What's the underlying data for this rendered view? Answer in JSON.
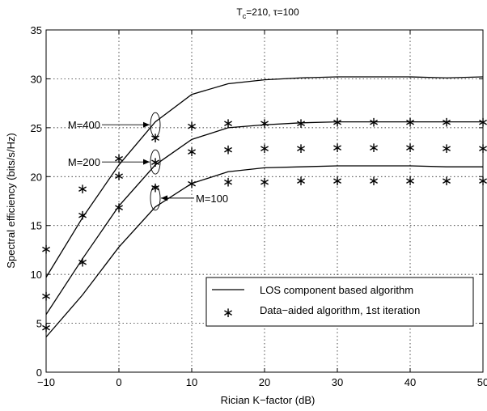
{
  "chart_data": {
    "type": "line",
    "title": "T",
    "title_sub": "c",
    "title_rest": "=210, τ=100",
    "xlabel": "Rician K−factor (dB)",
    "ylabel": "Spectral efficiency (bits/s/Hz)",
    "xlim": [
      -10,
      50
    ],
    "ylim": [
      0,
      35
    ],
    "xticks": [
      -10,
      0,
      10,
      20,
      30,
      40,
      50
    ],
    "xtick_labels": [
      "−10",
      "0",
      "10",
      "20",
      "30",
      "40",
      "50"
    ],
    "yticks": [
      0,
      5,
      10,
      15,
      20,
      25,
      30,
      35
    ],
    "ytick_labels": [
      "0",
      "5",
      "10",
      "15",
      "20",
      "25",
      "30",
      "35"
    ],
    "grid": true,
    "legend_position": "bottom-right",
    "legend": [
      {
        "label": "LOS component based algorithm",
        "style": "line"
      },
      {
        "label": "Data−aided algorithm, 1st iteration",
        "style": "marker"
      }
    ],
    "series": [
      {
        "group": "M=400",
        "style": "line",
        "x": [
          -10,
          -5,
          0,
          5,
          10,
          15,
          20,
          25,
          30,
          35,
          40,
          45,
          50
        ],
        "y": [
          9.7,
          15.8,
          21.2,
          25.6,
          28.4,
          29.5,
          29.9,
          30.1,
          30.2,
          30.2,
          30.2,
          30.1,
          30.2
        ]
      },
      {
        "group": "M=200",
        "style": "line",
        "x": [
          -10,
          -5,
          0,
          5,
          10,
          15,
          20,
          25,
          30,
          35,
          40,
          45,
          50
        ],
        "y": [
          5.9,
          11.6,
          17.0,
          21.2,
          23.8,
          25.0,
          25.3,
          25.5,
          25.6,
          25.6,
          25.6,
          25.6,
          25.6
        ]
      },
      {
        "group": "M=100",
        "style": "line",
        "x": [
          -10,
          -5,
          0,
          5,
          10,
          15,
          20,
          25,
          30,
          35,
          40,
          45,
          50
        ],
        "y": [
          3.6,
          7.9,
          12.8,
          16.9,
          19.3,
          20.5,
          20.9,
          21.0,
          21.1,
          21.1,
          21.1,
          21.0,
          21.0
        ]
      },
      {
        "group": "M=400",
        "style": "marker",
        "x": [
          -10,
          -5,
          0,
          5,
          10,
          15,
          20,
          25,
          30,
          35,
          40,
          45,
          50
        ],
        "y": [
          12.6,
          18.8,
          21.9,
          24.0,
          25.2,
          25.5,
          25.5,
          25.5,
          25.6,
          25.6,
          25.6,
          25.6,
          25.6
        ]
      },
      {
        "group": "M=200",
        "style": "marker",
        "x": [
          -10,
          -5,
          0,
          5,
          10,
          15,
          20,
          25,
          30,
          35,
          40,
          45,
          50
        ],
        "y": [
          7.8,
          16.1,
          20.1,
          21.5,
          22.6,
          22.8,
          22.9,
          22.9,
          23.0,
          23.0,
          23.0,
          22.9,
          22.9
        ]
      },
      {
        "group": "M=100",
        "style": "marker",
        "x": [
          -10,
          -5,
          0,
          5,
          10,
          15,
          20,
          25,
          30,
          35,
          40,
          45,
          50
        ],
        "y": [
          4.6,
          11.3,
          16.9,
          18.9,
          19.3,
          19.5,
          19.5,
          19.6,
          19.6,
          19.6,
          19.6,
          19.6,
          19.6
        ]
      }
    ],
    "annotations": [
      {
        "text": "M=400",
        "target_x": 5,
        "target_y": 25.3
      },
      {
        "text": "M=200",
        "target_x": 5,
        "target_y": 21.5
      },
      {
        "text": "M=100",
        "target_x": 5,
        "target_y": 17.8
      }
    ]
  }
}
